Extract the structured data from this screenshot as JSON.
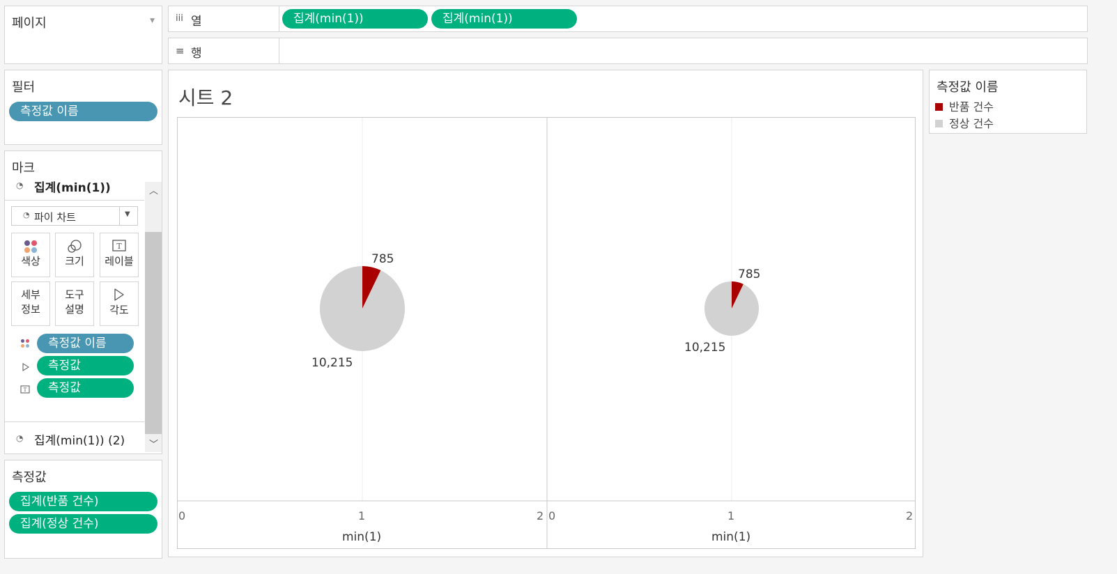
{
  "pages_shelf": {
    "title": "페이지"
  },
  "columns_shelf": {
    "icon": "iii",
    "label": "열",
    "pills": [
      "집계(min(1))",
      "집계(min(1))"
    ]
  },
  "rows_shelf": {
    "icon": "≡",
    "label": "행"
  },
  "filters": {
    "title": "필터",
    "pills": [
      "측정값 이름"
    ]
  },
  "marks": {
    "title": "마크",
    "active_card": "집계(min(1))",
    "mark_type": "파이 차트",
    "buttons": {
      "color": "색상",
      "size": "크기",
      "label": "레이블",
      "detail": [
        "세부",
        "정보"
      ],
      "tooltip": [
        "도구",
        "설명"
      ],
      "angle": "각도"
    },
    "fields": [
      "측정값 이름",
      "측정값",
      "측정값"
    ],
    "second_card": "집계(min(1)) (2)"
  },
  "measure_values": {
    "title": "측정값",
    "pills": [
      "집계(반품 건수)",
      "집계(정상 건수)"
    ]
  },
  "sheet": {
    "title": "시트 2"
  },
  "legend": {
    "title": "측정값 이름",
    "items": [
      {
        "label": "반품 건수",
        "color": "#a90000"
      },
      {
        "label": "정상 건수",
        "color": "#d2d2d2"
      }
    ]
  },
  "chart_data": [
    {
      "type": "pie",
      "slices": [
        {
          "name": "반품 건수",
          "value": 785
        },
        {
          "name": "정상 건수",
          "value": 10215
        }
      ],
      "data_labels": [
        "785",
        "10,215"
      ],
      "x_ticks": [
        "0",
        "1",
        "2"
      ],
      "xlabel": "min(1)"
    },
    {
      "type": "pie",
      "slices": [
        {
          "name": "반품 건수",
          "value": 785
        },
        {
          "name": "정상 건수",
          "value": 10215
        }
      ],
      "data_labels": [
        "785",
        "10,215"
      ],
      "x_ticks": [
        "0",
        "1",
        "2"
      ],
      "xlabel": "min(1)"
    }
  ]
}
